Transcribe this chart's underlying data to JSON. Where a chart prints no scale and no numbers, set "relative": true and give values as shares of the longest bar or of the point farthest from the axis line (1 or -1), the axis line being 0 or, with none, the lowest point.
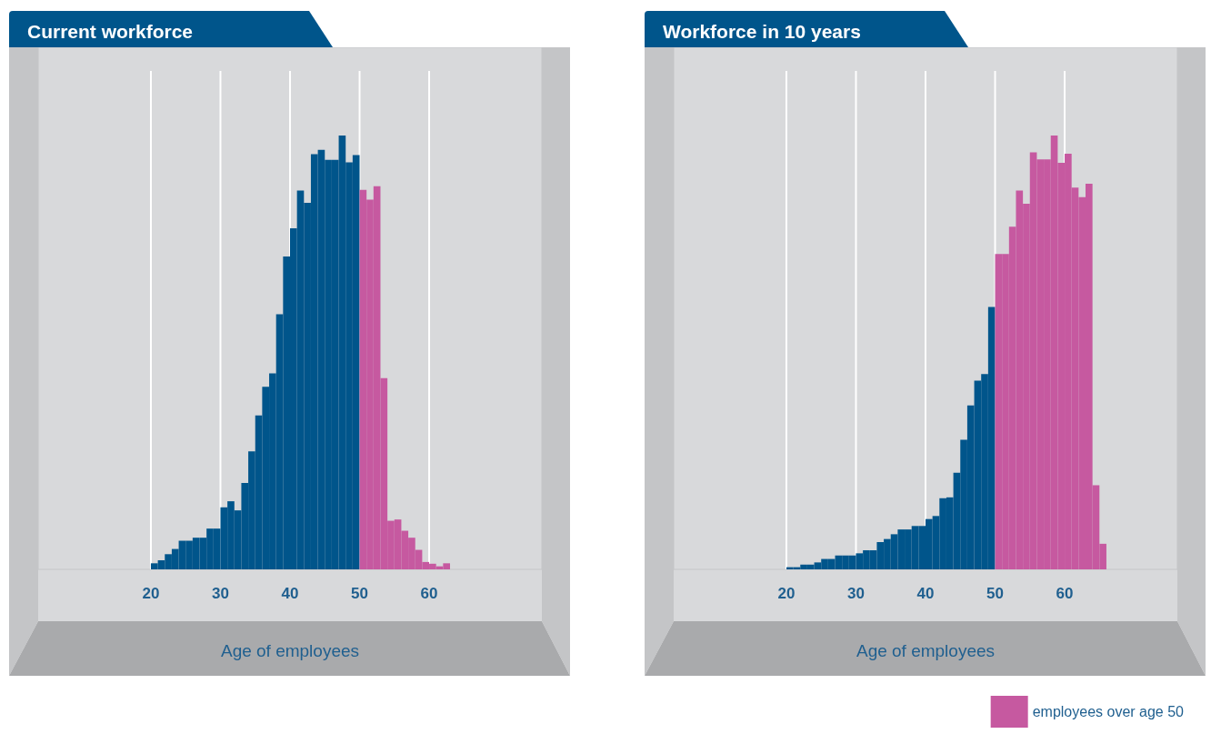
{
  "chart_data": [
    {
      "type": "bar",
      "title": "Current workforce",
      "xlabel": "Age of employees",
      "relative": true,
      "xlim": [
        3.8,
        76.2
      ],
      "xticks": [
        20,
        30,
        40,
        50,
        60
      ],
      "grid": "x",
      "series": [
        {
          "color": "#00558b",
          "x": [
            20.5,
            21.5,
            22.5,
            23.5,
            24.5,
            25.5,
            26.5,
            27.5,
            28.5,
            29.5,
            30.5,
            31.5,
            32.5,
            33.5,
            34.5,
            35.5,
            36.5,
            37.5,
            38.5,
            39.5,
            40.5,
            41.5,
            42.5,
            43.5,
            44.5,
            45.5,
            46.5,
            47.5,
            48.5,
            49.5
          ],
          "values": [
            0.014,
            0.021,
            0.035,
            0.047,
            0.066,
            0.066,
            0.073,
            0.073,
            0.094,
            0.094,
            0.143,
            0.157,
            0.136,
            0.199,
            0.272,
            0.355,
            0.421,
            0.452,
            0.588,
            0.721,
            0.786,
            0.873,
            0.845,
            0.957,
            0.967,
            0.944,
            0.944,
            1.0,
            0.938,
            0.955
          ]
        },
        {
          "color": "#c659a0",
          "x": [
            50.5,
            51.5,
            52.5,
            53.5,
            54.5,
            55.5,
            56.5,
            57.5,
            58.5,
            59.5,
            60.5,
            61.5,
            62.5
          ],
          "values": [
            0.875,
            0.852,
            0.883,
            0.441,
            0.112,
            0.115,
            0.089,
            0.073,
            0.045,
            0.017,
            0.013,
            0.007,
            0.014
          ]
        }
      ]
    },
    {
      "type": "bar",
      "title": "Workforce in 10 years",
      "xlabel": "Age of employees",
      "relative": true,
      "xlim": [
        3.8,
        76.2
      ],
      "xticks": [
        20,
        30,
        40,
        50,
        60
      ],
      "grid": "x",
      "legend": "bottom right",
      "series": [
        {
          "color": "#00558b",
          "x": [
            20.5,
            21.5,
            22.5,
            23.5,
            24.5,
            25.5,
            26.5,
            27.5,
            28.5,
            29.5,
            30.5,
            31.5,
            32.5,
            33.5,
            34.5,
            35.5,
            36.5,
            37.5,
            38.5,
            39.5,
            40.5,
            41.5,
            42.5,
            43.5,
            44.5,
            45.5,
            46.5,
            47.5,
            48.5,
            49.5
          ],
          "values": [
            0.005,
            0.005,
            0.011,
            0.011,
            0.016,
            0.024,
            0.024,
            0.032,
            0.032,
            0.032,
            0.037,
            0.044,
            0.044,
            0.063,
            0.07,
            0.081,
            0.092,
            0.092,
            0.1,
            0.1,
            0.116,
            0.123,
            0.164,
            0.166,
            0.223,
            0.299,
            0.378,
            0.435,
            0.45,
            0.605
          ]
        },
        {
          "name": "employees over age 50",
          "color": "#c659a0",
          "x": [
            50.5,
            51.5,
            52.5,
            53.5,
            54.5,
            55.5,
            56.5,
            57.5,
            58.5,
            59.5,
            60.5,
            61.5,
            62.5,
            63.5,
            64.5,
            65.5
          ],
          "values": [
            0.727,
            0.727,
            0.79,
            0.873,
            0.843,
            0.961,
            0.945,
            0.945,
            1.0,
            0.937,
            0.958,
            0.88,
            0.858,
            0.889,
            0.194,
            0.059
          ]
        }
      ]
    }
  ]
}
